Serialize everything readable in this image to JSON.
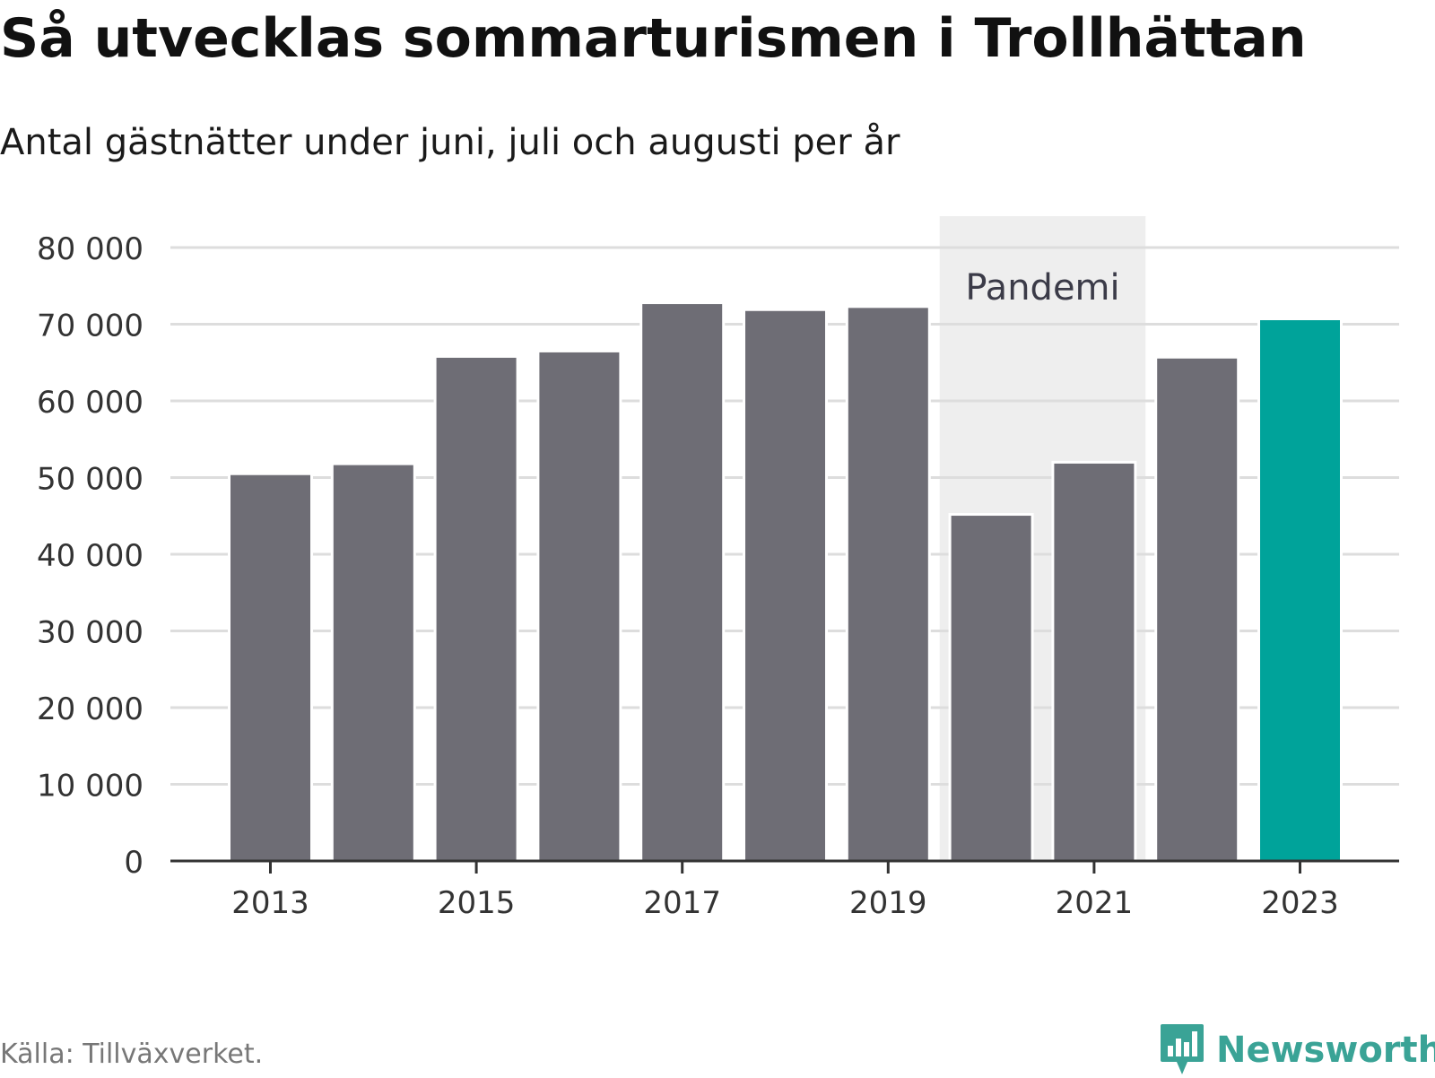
{
  "header": {
    "title": "Så utvecklas sommarturismen i Trollhättan",
    "subtitle": "Antal gästnätter under juni, juli och augusti per år"
  },
  "footer": {
    "source": "Källa: Tillväxverket.",
    "brand": "Newsworthy"
  },
  "colors": {
    "bar": "#6e6d75",
    "highlight": "#00a39a",
    "band": "#eeeeee",
    "grid": "#dddddd",
    "brand": "#3aa396"
  },
  "icons": {
    "brand_logo": "newsworthy-logo-icon"
  },
  "chart_data": {
    "type": "bar",
    "title": "Så utvecklas sommarturismen i Trollhättan",
    "subtitle": "Antal gästnätter under juni, juli och augusti per år",
    "categories": [
      "2013",
      "2014",
      "2015",
      "2016",
      "2017",
      "2018",
      "2019",
      "2020",
      "2021",
      "2022",
      "2023"
    ],
    "values": [
      50500,
      51800,
      65800,
      66500,
      72800,
      71900,
      72300,
      45200,
      52000,
      65700,
      70700
    ],
    "highlight_category": "2023",
    "ylim": [
      0,
      80000
    ],
    "yticks": [
      0,
      10000,
      20000,
      30000,
      40000,
      50000,
      60000,
      70000,
      80000
    ],
    "ytick_labels": [
      "0",
      "10 000",
      "20 000",
      "30 000",
      "40 000",
      "50 000",
      "60 000",
      "70 000",
      "80 000"
    ],
    "xtick_labels": [
      "2013",
      "2015",
      "2017",
      "2019",
      "2021",
      "2023"
    ],
    "grid": true,
    "annotation": {
      "label": "Pandemi",
      "from": "2020",
      "to": "2021"
    }
  }
}
